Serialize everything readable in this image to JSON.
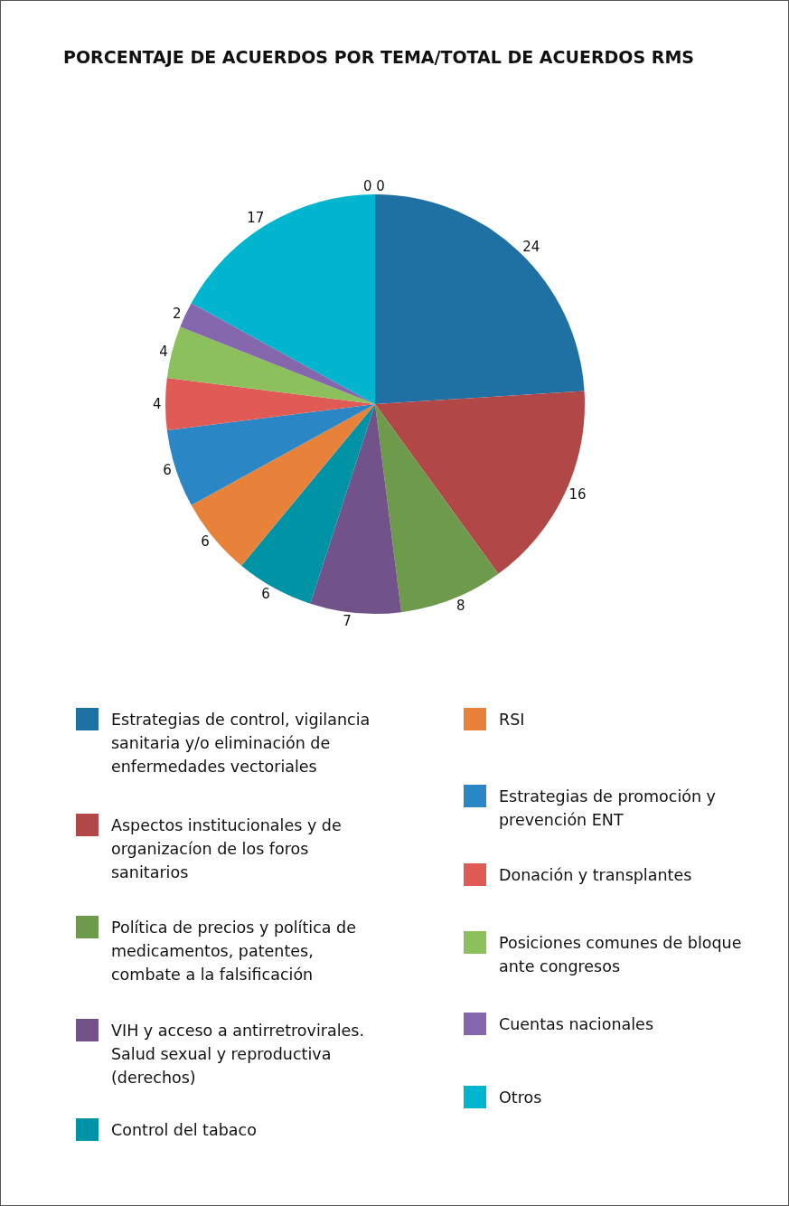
{
  "chart_data": {
    "type": "pie",
    "title": "PORCENTAJE DE ACUERDOS POR TEMA/TOTAL DE ACUERDOS RMS",
    "categories": [
      "Estrategias de control, vigilancia sanitaria y/o eliminación de enfermedades vectoriales",
      "Aspectos institucionales y de organizacíon de los foros sanitarios",
      "Política de precios y política de medicamentos, patentes, combate a la falsificación",
      "VIH y acceso a antirretrovirales. Salud sexual y reproductiva (derechos)",
      "Control del tabaco",
      "RSI",
      "Estrategias de promoción y prevención ENT",
      "Donación y transplantes",
      "Posiciones comunes de bloque ante congresos",
      "Cuentas nacionales",
      "Otros"
    ],
    "values": [
      24,
      16,
      8,
      7,
      6,
      6,
      6,
      4,
      4,
      2,
      17
    ],
    "colors": [
      "#1f70a3",
      "#b24747",
      "#6e9b4b",
      "#715389",
      "#0093a5",
      "#e8823a",
      "#2a86c4",
      "#e05a56",
      "#8bc05c",
      "#8467ac",
      "#00b5cd"
    ],
    "data_labels": true,
    "legend": "bottom",
    "annotations": [
      "0 0"
    ]
  }
}
